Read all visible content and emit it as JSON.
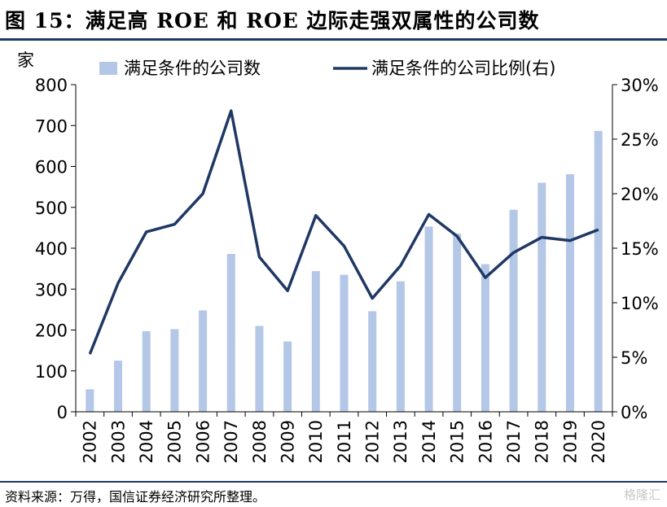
{
  "title": "图 15：满足高 ROE 和 ROE 边际走强双属性的公司数",
  "source": "资料来源：万得，国信证券经济研究所整理。",
  "watermark": "格隆汇",
  "colors": {
    "bar": "#b4c7e7",
    "line": "#1f3864",
    "rule": "#1f3864"
  },
  "chart_data": {
    "type": "bar",
    "ylabel_left": "家",
    "categories": [
      "2002",
      "2003",
      "2004",
      "2005",
      "2006",
      "2007",
      "2008",
      "2009",
      "2010",
      "2011",
      "2012",
      "2013",
      "2014",
      "2015",
      "2016",
      "2017",
      "2018",
      "2019",
      "2020"
    ],
    "ylim_left": [
      0,
      800
    ],
    "ylim_right": [
      0,
      0.3
    ],
    "yticks_left": [
      "0",
      "100",
      "200",
      "300",
      "400",
      "500",
      "600",
      "700",
      "800"
    ],
    "yticks_right": [
      "0%",
      "5%",
      "10%",
      "15%",
      "20%",
      "25%",
      "30%"
    ],
    "legend_position": "top",
    "series": [
      {
        "name": "满足条件的公司数",
        "type": "bar",
        "axis": "left",
        "values": [
          55,
          125,
          197,
          202,
          248,
          386,
          210,
          172,
          344,
          335,
          246,
          319,
          453,
          436,
          361,
          494,
          560,
          581,
          687
        ]
      },
      {
        "name": "满足条件的公司比例(右)",
        "type": "line",
        "axis": "right",
        "values": [
          0.053,
          0.118,
          0.165,
          0.172,
          0.2,
          0.276,
          0.142,
          0.111,
          0.18,
          0.152,
          0.104,
          0.134,
          0.181,
          0.161,
          0.123,
          0.146,
          0.16,
          0.157,
          0.167
        ]
      }
    ]
  }
}
